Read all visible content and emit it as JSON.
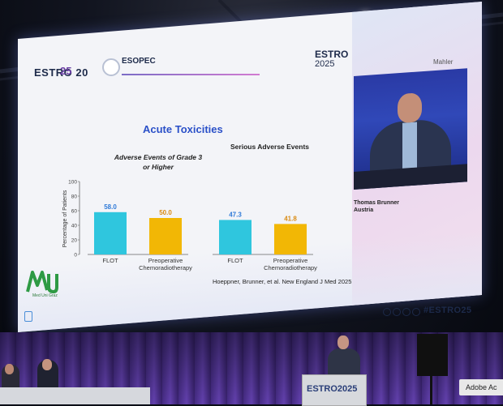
{
  "slide": {
    "header_brand": "ESTRO 20",
    "header_year": "25",
    "trial_name": "ESOPEC",
    "brand_right": "ESTRO",
    "brand_right_year": "2025",
    "presenter_top": "Mahler",
    "title": "Acute Toxicities",
    "subtitle_left": "Adverse Events of Grade 3 or Higher",
    "subtitle_right": "Serious Adverse Events",
    "y_axis_label": "Percentage of Patients",
    "citation": "Hoeppner, Brunner, et al. New England J Med 2025",
    "footer_tag": "#ESTRO25",
    "logo_text": "Med Uni Graz",
    "speaker_name": "Thomas Brunner",
    "speaker_country": "Austria"
  },
  "chart_data": {
    "type": "bar",
    "ylabel": "Percentage of Patients",
    "ylim": [
      0,
      100
    ],
    "yticks": [
      0,
      20,
      40,
      60,
      80,
      100
    ],
    "categories": [
      "FLOT",
      "Preoperative Chemoradiotherapy"
    ],
    "groups": [
      {
        "name": "Adverse Events of Grade 3 or Higher",
        "values": [
          58.0,
          50.0
        ]
      },
      {
        "name": "Serious Adverse Events",
        "values": [
          47.3,
          41.8
        ]
      }
    ],
    "colors": {
      "FLOT": "#2fc6de",
      "Preoperative Chemoradiotherapy": "#f2b705"
    },
    "value_labels": {
      "FLOT": [
        "58.0",
        "47.3"
      ],
      "Preoperative Chemoradiotherapy": [
        "50.0",
        "41.8"
      ]
    },
    "value_label_colors": {
      "FLOT": "#2f7ad8",
      "Preoperative Chemoradiotherapy": "#d98a12"
    }
  },
  "stage": {
    "podium_label": "ESTRO2025",
    "corner_label": "Adobe Ac"
  }
}
